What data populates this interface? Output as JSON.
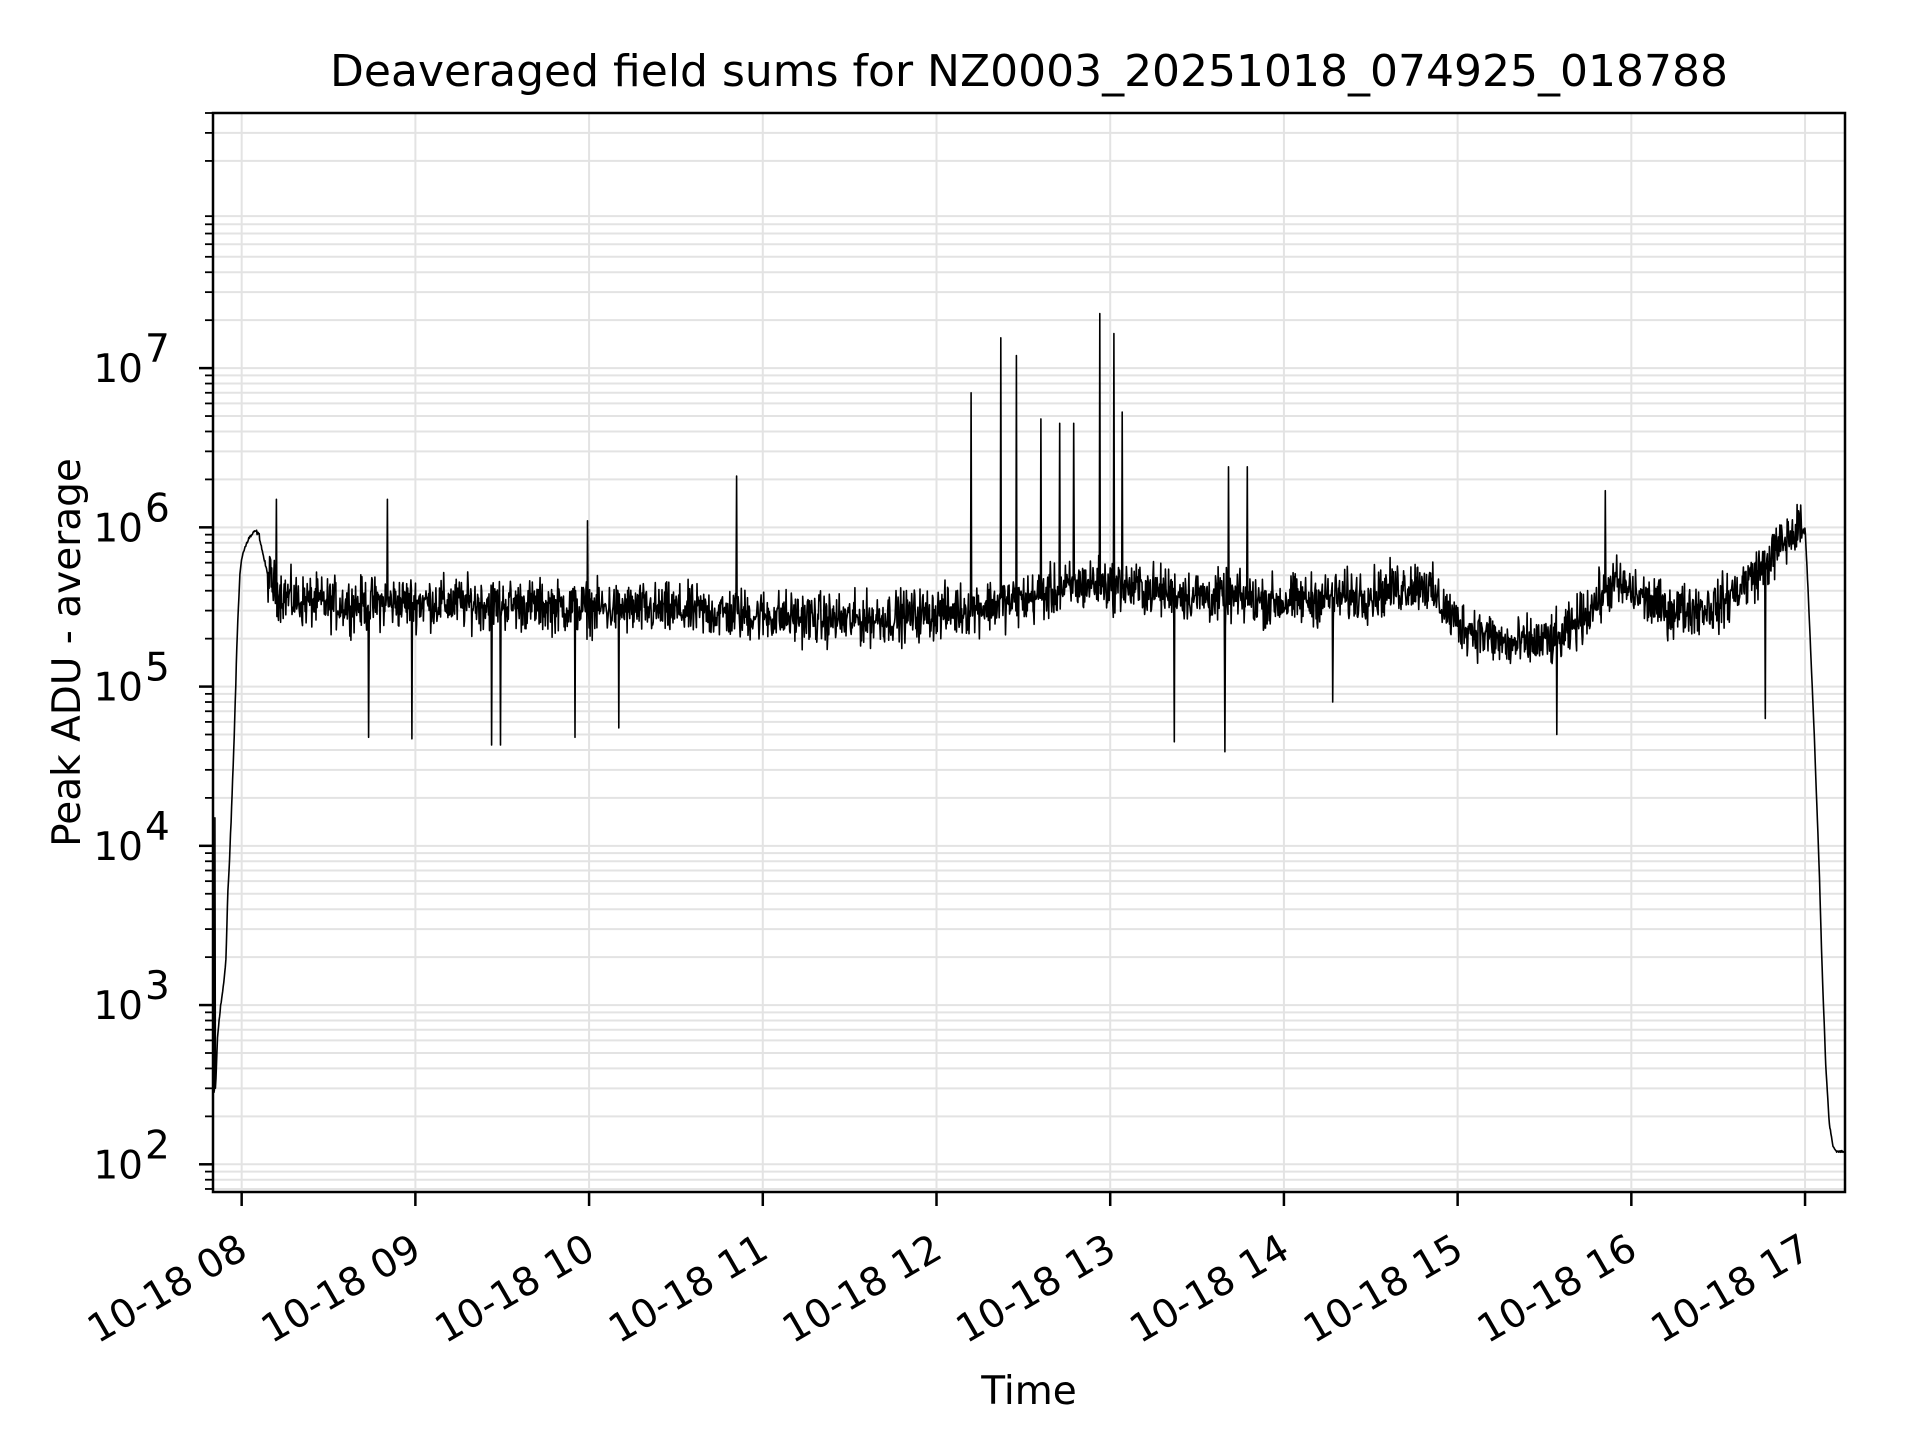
{
  "chart_data": {
    "type": "line",
    "title": "Deaveraged field sums for NZ0003_20251018_074925_018788",
    "xlabel": "Time",
    "ylabel": "Peak ADU - average",
    "yscale": "log",
    "ylim": [
      67,
      400000000
    ],
    "xlim_hours": [
      7.835,
      17.23
    ],
    "grid": true,
    "line_color": "#000000",
    "x_ticks": [
      {
        "hour": 8,
        "label": "10-18 08"
      },
      {
        "hour": 9,
        "label": "10-18 09"
      },
      {
        "hour": 10,
        "label": "10-18 10"
      },
      {
        "hour": 11,
        "label": "10-18 11"
      },
      {
        "hour": 12,
        "label": "10-18 12"
      },
      {
        "hour": 13,
        "label": "10-18 13"
      },
      {
        "hour": 14,
        "label": "10-18 14"
      },
      {
        "hour": 15,
        "label": "10-18 15"
      },
      {
        "hour": 16,
        "label": "10-18 16"
      },
      {
        "hour": 17,
        "label": "10-18 17"
      }
    ],
    "y_ticks": [
      {
        "value": 100,
        "base": "10",
        "exp": "2"
      },
      {
        "value": 1000,
        "base": "10",
        "exp": "3"
      },
      {
        "value": 10000,
        "base": "10",
        "exp": "4"
      },
      {
        "value": 100000,
        "base": "10",
        "exp": "5"
      },
      {
        "value": 1000000,
        "base": "10",
        "exp": "6"
      },
      {
        "value": 10000000,
        "base": "10",
        "exp": "7"
      }
    ],
    "series": [
      {
        "name": "Peak ADU - average",
        "x_hours": [
          7.84,
          7.85,
          7.86,
          7.87,
          7.88,
          7.89,
          7.9,
          7.91,
          7.92,
          7.93,
          7.94,
          7.95,
          7.96,
          7.97,
          7.98,
          7.99,
          8.0,
          8.02,
          8.04,
          8.06,
          8.08,
          8.1,
          8.12,
          8.15,
          8.2,
          8.3,
          8.5,
          8.7,
          9.0,
          9.5,
          10.0,
          10.5,
          11.0,
          11.5,
          12.0,
          12.5,
          12.9,
          13.5,
          14.0,
          14.5,
          14.8,
          15.0,
          15.3,
          15.6,
          15.9,
          16.2,
          16.5,
          16.75,
          16.85,
          16.95,
          17.0,
          17.02,
          17.05,
          17.08,
          17.1,
          17.12,
          17.14,
          17.16,
          17.18,
          17.2,
          17.23
        ],
        "values": [
          280,
          300,
          600,
          800,
          1000,
          1200,
          1500,
          2000,
          5000,
          8000,
          15000,
          30000,
          60000,
          150000,
          300000,
          500000,
          650000,
          750000,
          850000,
          900000,
          950000,
          900000,
          700000,
          500000,
          400000,
          350000,
          330000,
          330000,
          340000,
          330000,
          310000,
          300000,
          280000,
          260000,
          290000,
          350000,
          450000,
          370000,
          340000,
          380000,
          450000,
          250000,
          180000,
          200000,
          450000,
          300000,
          320000,
          550000,
          750000,
          950000,
          1000000,
          350000,
          60000,
          8000,
          1500,
          400,
          180,
          130,
          120,
          120,
          120
        ],
        "spikes": [
          {
            "hour": 7.845,
            "value": 15000
          },
          {
            "hour": 8.2,
            "value": 1500000
          },
          {
            "hour": 8.84,
            "value": 1500000
          },
          {
            "hour": 9.99,
            "value": 1100000
          },
          {
            "hour": 10.85,
            "value": 2100000
          },
          {
            "hour": 12.2,
            "value": 7000000
          },
          {
            "hour": 12.37,
            "value": 15500000
          },
          {
            "hour": 12.46,
            "value": 12000000
          },
          {
            "hour": 12.6,
            "value": 4800000
          },
          {
            "hour": 12.71,
            "value": 4500000
          },
          {
            "hour": 12.79,
            "value": 4500000
          },
          {
            "hour": 12.94,
            "value": 22000000
          },
          {
            "hour": 13.02,
            "value": 16500000
          },
          {
            "hour": 13.07,
            "value": 5300000
          },
          {
            "hour": 13.68,
            "value": 2400000
          },
          {
            "hour": 13.79,
            "value": 2400000
          },
          {
            "hour": 15.85,
            "value": 1700000
          }
        ],
        "dips": [
          {
            "hour": 8.73,
            "value": 48000
          },
          {
            "hour": 8.98,
            "value": 47000
          },
          {
            "hour": 9.44,
            "value": 43000
          },
          {
            "hour": 9.49,
            "value": 43000
          },
          {
            "hour": 9.92,
            "value": 48000
          },
          {
            "hour": 10.17,
            "value": 55000
          },
          {
            "hour": 13.37,
            "value": 45000
          },
          {
            "hour": 13.66,
            "value": 39000
          },
          {
            "hour": 14.28,
            "value": 80000
          },
          {
            "hour": 15.57,
            "value": 50000
          },
          {
            "hour": 16.77,
            "value": 63000
          }
        ]
      }
    ]
  }
}
